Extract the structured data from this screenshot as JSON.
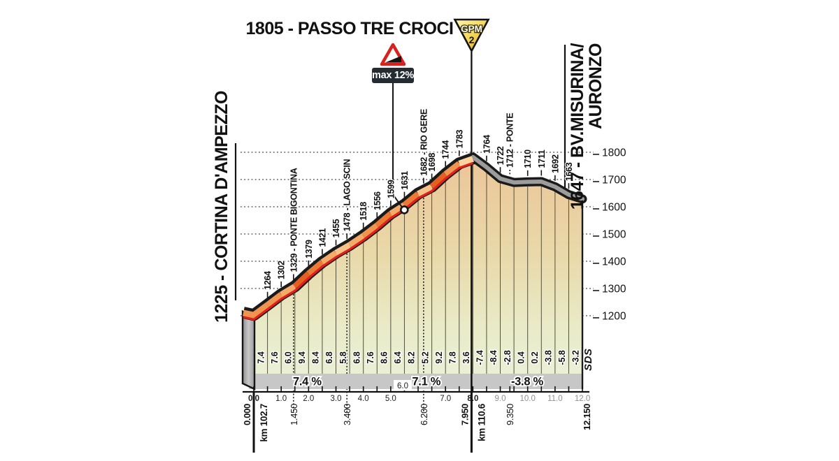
{
  "chart_data": {
    "type": "area",
    "title": "1805 - PASSO TRE CROCI",
    "summit": {
      "elevation_m": 1805,
      "km": 7.95
    },
    "gpm": {
      "label": "GPM",
      "category": "2"
    },
    "max_gradient": {
      "label": "max 12%",
      "marker_km": 5.47
    },
    "start": {
      "name": "1225 - CORTINA D'AMPEZZO",
      "elevation_m": 1225
    },
    "end": {
      "name_line1": "1647 - BV.MISURINA/",
      "name_line2": "AURONZO",
      "elevation_m": 1647
    },
    "logo": "SDS",
    "x_axis": {
      "unit": "km",
      "min": 0,
      "max": 12,
      "tick_labels": [
        "0.0",
        "1.0",
        "2.0",
        "3.0",
        "4.0",
        "5.0",
        "6.0",
        "7.0",
        "8.0",
        "9.0",
        "10.0",
        "11.0",
        "12.0"
      ],
      "bold_labels": [
        "0.0",
        "8.0"
      ],
      "gray_labels": [
        "9.0",
        "10.0",
        "11.0",
        "12.0"
      ],
      "raised_label": "6.0",
      "extra_tick_km": 9.35
    },
    "y_axis": {
      "unit": "m",
      "min": 1200,
      "max": 1800,
      "step": 100,
      "tick_labels": [
        "1800",
        "1700",
        "1600",
        "1500",
        "1400",
        "1300",
        "1200"
      ]
    },
    "segment_km": 0.5,
    "segment_grades_pct": [
      7.4,
      7.6,
      6.0,
      9.4,
      8.4,
      6.8,
      5.8,
      6.8,
      7.6,
      8.6,
      6.4,
      8.2,
      5.2,
      9.2,
      7.8,
      3.6,
      -7.4,
      -8.4,
      -2.8,
      0.4,
      0.2,
      -3.8,
      -5.8,
      -3.2
    ],
    "avg_sections": [
      {
        "from_km": 0,
        "to_km": 3.4,
        "label": "7.4 %",
        "label_km": 1.95
      },
      {
        "from_km": 3.4,
        "to_km": 7.95,
        "label": "7.1 %",
        "label_km": 6.3
      },
      {
        "from_km": 7.95,
        "to_km": 12.15,
        "label": "-3.8 %",
        "label_km": 9.98
      }
    ],
    "landmarks": [
      {
        "km": 0.5,
        "label": "1264"
      },
      {
        "km": 1.0,
        "label": "1302"
      },
      {
        "km": 1.45,
        "label": "1329 - PONTE BIGONTINA"
      },
      {
        "km": 2.0,
        "label": "1379"
      },
      {
        "km": 2.5,
        "label": "1421"
      },
      {
        "km": 3.0,
        "label": "1455"
      },
      {
        "km": 3.4,
        "label": "1478 - LAGO SCIN"
      },
      {
        "km": 4.0,
        "label": "1518"
      },
      {
        "km": 4.5,
        "label": "1556"
      },
      {
        "km": 5.0,
        "label": "1599"
      },
      {
        "km": 5.5,
        "label": "1631"
      },
      {
        "km": 6.2,
        "label": "1682 - RIO GERE"
      },
      {
        "km": 6.5,
        "label": "1698"
      },
      {
        "km": 7.0,
        "label": "1744"
      },
      {
        "km": 7.5,
        "label": "1783"
      },
      {
        "km": 8.5,
        "label": "1764"
      },
      {
        "km": 9.0,
        "label": "1722"
      },
      {
        "km": 9.35,
        "label": "1712 - PONTE",
        "dotted": true
      },
      {
        "km": 10.0,
        "label": "1710"
      },
      {
        "km": 10.5,
        "label": "1711"
      },
      {
        "km": 11.0,
        "label": "1692"
      },
      {
        "km": 11.5,
        "label": "1663"
      }
    ],
    "km_markers": [
      {
        "km": 0.0,
        "label": "0.000",
        "bold": true,
        "line": true,
        "race": "km 102.7"
      },
      {
        "km": 1.45,
        "label": "1.450"
      },
      {
        "km": 3.4,
        "label": "3.400"
      },
      {
        "km": 6.2,
        "label": "6.200"
      },
      {
        "km": 7.95,
        "label": "7.950",
        "bold": true,
        "line": true,
        "race": "km 110.6"
      },
      {
        "km": 9.35,
        "label": "9.350"
      },
      {
        "km": 12.15,
        "label": "12.150",
        "bold": true
      }
    ],
    "divider_lines_km": [
      1.45,
      3.4,
      6.2
    ],
    "colors": {
      "road_black": "#1a1a1a",
      "road_red": "#e4201c",
      "descent_gray": "#9c9c9c",
      "fill_top": "#ecc498",
      "fill_mid": "#e9d8a8",
      "fill_bottom": "#eaf0d6",
      "band_gray": "#c7c7c7",
      "badge_box": "#242b31",
      "warning_red": "#d8211f",
      "gpm_gold_light": "#fff9b0",
      "gpm_gold_dark": "#d9a514",
      "grade_scale": [
        {
          "min": 9,
          "color": "#e35f22"
        },
        {
          "min": 8,
          "color": "#ea7a36"
        },
        {
          "min": 7,
          "color": "#f0944f"
        },
        {
          "min": 6,
          "color": "#f4ab69"
        },
        {
          "min": 5,
          "color": "#f8c288"
        },
        {
          "min": -99,
          "color": "#fbd39f"
        }
      ]
    }
  }
}
